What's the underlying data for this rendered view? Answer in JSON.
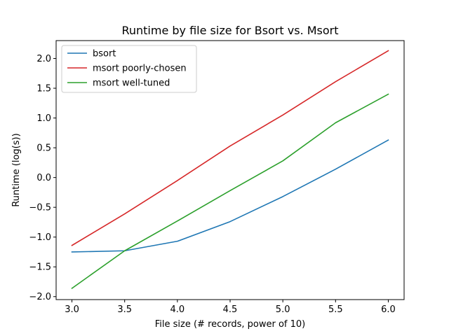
{
  "chart_data": {
    "type": "line",
    "title": "Runtime by file size for Bsort vs. Msort",
    "xlabel": "File size (# records, power of 10)",
    "ylabel": "Runtime (log(s))",
    "xlim": [
      2.85,
      6.15
    ],
    "ylim": [
      -2.05,
      2.3
    ],
    "x": [
      3.0,
      3.5,
      4.0,
      4.5,
      5.0,
      5.5,
      6.0
    ],
    "xticks": [
      "3.0",
      "3.5",
      "4.0",
      "4.5",
      "5.0",
      "5.5",
      "6.0"
    ],
    "yticks": [
      "−2.0",
      "−1.5",
      "−1.0",
      "−0.5",
      "0.0",
      "0.5",
      "1.0",
      "1.5",
      "2.0"
    ],
    "grid": false,
    "legend_position": "top-left",
    "series": [
      {
        "name": "bsort",
        "color": "#1f77b4",
        "values": [
          -1.25,
          -1.23,
          -1.07,
          -0.74,
          -0.32,
          0.14,
          0.63
        ]
      },
      {
        "name": "msort poorly-chosen",
        "color": "#d62728",
        "values": [
          -1.14,
          -0.61,
          -0.05,
          0.53,
          1.05,
          1.61,
          2.13
        ]
      },
      {
        "name": "msort well-tuned",
        "color": "#2ca02c",
        "values": [
          -1.86,
          -1.23,
          -0.73,
          -0.22,
          0.28,
          0.92,
          1.4
        ]
      }
    ]
  }
}
